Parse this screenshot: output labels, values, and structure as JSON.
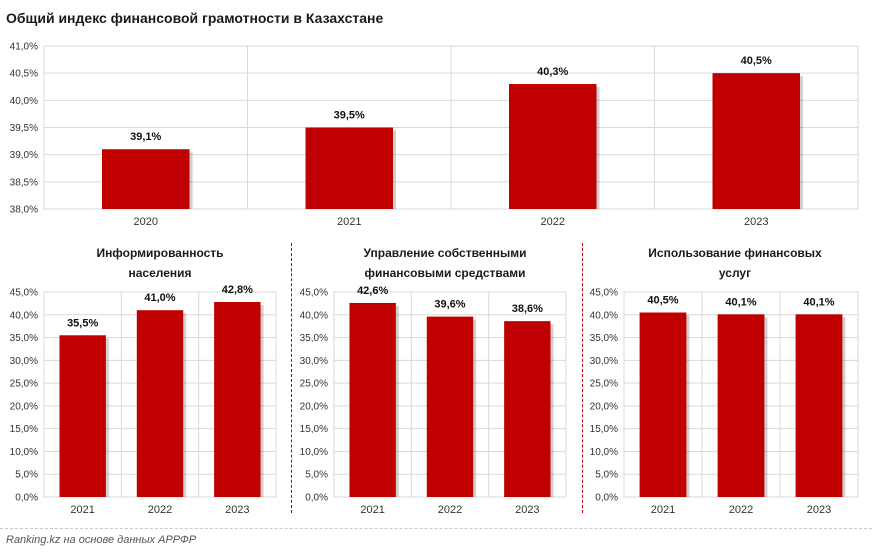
{
  "title": "Общий индекс финансовой грамотности в Казахстане",
  "source": "Ranking.kz на основе данных АРРФР",
  "colors": {
    "bar": "#c00000",
    "grid": "#d9d9d9",
    "separator": "#c00000"
  },
  "chart_data": [
    {
      "type": "bar",
      "title": "",
      "categories": [
        "2020",
        "2021",
        "2022",
        "2023"
      ],
      "values": [
        39.1,
        39.5,
        40.3,
        40.5
      ],
      "value_labels": [
        "39,1%",
        "39,5%",
        "40,3%",
        "40,5%"
      ],
      "ylim": [
        38.0,
        41.0
      ],
      "y_ticks": [
        "38,0%",
        "38,5%",
        "39,0%",
        "39,5%",
        "40,0%",
        "40,5%",
        "41,0%"
      ],
      "xlabel": "",
      "ylabel": "",
      "grid": true,
      "legend": "none"
    },
    {
      "type": "bar",
      "title": "Информированность населения",
      "title_lines": [
        "Информированность",
        "населения"
      ],
      "categories": [
        "2021",
        "2022",
        "2023"
      ],
      "values": [
        35.5,
        41.0,
        42.8
      ],
      "value_labels": [
        "35,5%",
        "41,0%",
        "42,8%"
      ],
      "ylim": [
        0,
        45
      ],
      "y_ticks": [
        "0,0%",
        "5,0%",
        "10,0%",
        "15,0%",
        "20,0%",
        "25,0%",
        "30,0%",
        "35,0%",
        "40,0%",
        "45,0%"
      ],
      "xlabel": "",
      "ylabel": "",
      "grid": true,
      "legend": "none"
    },
    {
      "type": "bar",
      "title": "Управление собственными финансовыми средствами",
      "title_lines": [
        "Управление собственными",
        "финансовыми средствами"
      ],
      "categories": [
        "2021",
        "2022",
        "2023"
      ],
      "values": [
        42.6,
        39.6,
        38.6
      ],
      "value_labels": [
        "42,6%",
        "39,6%",
        "38,6%"
      ],
      "ylim": [
        0,
        45
      ],
      "y_ticks": [
        "0,0%",
        "5,0%",
        "10,0%",
        "15,0%",
        "20,0%",
        "25,0%",
        "30,0%",
        "35,0%",
        "40,0%",
        "45,0%"
      ],
      "xlabel": "",
      "ylabel": "",
      "grid": true,
      "legend": "none"
    },
    {
      "type": "bar",
      "title": "Использование финансовых услуг",
      "title_lines": [
        "Использование финансовых",
        "услуг"
      ],
      "categories": [
        "2021",
        "2022",
        "2023"
      ],
      "values": [
        40.5,
        40.1,
        40.1
      ],
      "value_labels": [
        "40,5%",
        "40,1%",
        "40,1%"
      ],
      "ylim": [
        0,
        45
      ],
      "y_ticks": [
        "0,0%",
        "5,0%",
        "10,0%",
        "15,0%",
        "20,0%",
        "25,0%",
        "30,0%",
        "35,0%",
        "40,0%",
        "45,0%"
      ],
      "xlabel": "",
      "ylabel": "",
      "grid": true,
      "legend": "none"
    }
  ]
}
